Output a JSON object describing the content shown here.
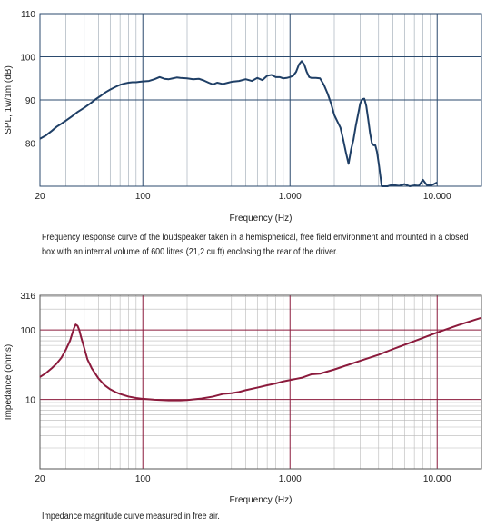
{
  "chart_data": [
    {
      "type": "line",
      "title": "",
      "xlabel": "Frequency (Hz)",
      "ylabel": "SPL, 1w/1m (dB)",
      "x_scale": "log",
      "xlim": [
        20,
        20000
      ],
      "ylim": [
        70,
        110
      ],
      "x_tick_labels": [
        {
          "value": 20,
          "label": "20"
        },
        {
          "value": 100,
          "label": "100"
        },
        {
          "value": 1000,
          "label": "1.000"
        },
        {
          "value": 10000,
          "label": "10.000"
        }
      ],
      "y_tick_labels": [
        {
          "value": 80,
          "label": "80"
        },
        {
          "value": 90,
          "label": "90"
        },
        {
          "value": 100,
          "label": "100"
        },
        {
          "value": 110,
          "label": "110"
        }
      ],
      "grid": true,
      "colors": {
        "line": "#1f3f66",
        "grid": "#9aa5b1",
        "major_grid": "#2b4a6e"
      },
      "series": [
        {
          "x": [
            20,
            22,
            24,
            26,
            28,
            30,
            33,
            36,
            40,
            44,
            48,
            52,
            56,
            60,
            65,
            70,
            75,
            80,
            85,
            90,
            95,
            100,
            110,
            120,
            130,
            140,
            150,
            160,
            170,
            180,
            200,
            220,
            240,
            260,
            280,
            300,
            320,
            350,
            380,
            400,
            450,
            500,
            550,
            600,
            650,
            700,
            750,
            800,
            850,
            900,
            950,
            1000,
            1050,
            1100,
            1150,
            1200,
            1250,
            1300,
            1350,
            1400,
            1500,
            1600,
            1700,
            1800,
            1900,
            2000,
            2100,
            2200,
            2300,
            2400,
            2500,
            2600,
            2700,
            2800,
            2900,
            3000,
            3100,
            3200,
            3300,
            3400,
            3500,
            3600,
            3700,
            3800,
            3900,
            4000,
            4200,
            4400,
            4600,
            4800,
            5000,
            5500,
            6000,
            6500,
            7000,
            7500,
            8000,
            8500,
            9000,
            9500,
            10000
          ],
          "y": [
            81,
            81.8,
            82.8,
            83.8,
            84.5,
            85.2,
            86.2,
            87.2,
            88.2,
            89.2,
            90.2,
            91,
            91.8,
            92.4,
            93,
            93.5,
            93.8,
            94,
            94.1,
            94.1,
            94.2,
            94.3,
            94.4,
            94.8,
            95.3,
            94.9,
            94.8,
            95,
            95.2,
            95.1,
            95,
            94.8,
            94.9,
            94.5,
            94,
            93.6,
            94,
            93.7,
            94,
            94.2,
            94.4,
            94.8,
            94.4,
            95.1,
            94.6,
            95.6,
            95.8,
            95.3,
            95.3,
            95,
            95.1,
            95.3,
            95.6,
            96.5,
            98.2,
            99,
            98.2,
            96.5,
            95.3,
            95.1,
            95.1,
            95,
            93.5,
            91.5,
            89.2,
            86.5,
            85,
            83.6,
            80.8,
            77.8,
            75.2,
            78.5,
            80.8,
            84,
            86.6,
            89.2,
            90.2,
            90.3,
            88.6,
            85.5,
            82.3,
            80,
            79.5,
            79.5,
            78,
            75.5,
            70,
            70,
            70,
            70.2,
            70.3,
            70.1,
            70.5,
            70,
            70.2,
            70.1,
            71.5,
            70.3,
            70.2,
            70.5,
            70.9
          ]
        }
      ],
      "caption": "Frequency response curve of the loudspeaker taken in a hemispherical, free field environment and mounted in a closed box with an internal volume of 600 litres (21,2 cu.ft) enclosing the rear of the driver."
    },
    {
      "type": "line",
      "title": "",
      "xlabel": "Frequency (Hz)",
      "ylabel": "Impedance (ohms)",
      "x_scale": "log",
      "y_scale": "log",
      "xlim": [
        20,
        20000
      ],
      "ylim": [
        1,
        316
      ],
      "x_tick_labels": [
        {
          "value": 20,
          "label": "20"
        },
        {
          "value": 100,
          "label": "100"
        },
        {
          "value": 1000,
          "label": "1.000"
        },
        {
          "value": 10000,
          "label": "10.000"
        }
      ],
      "y_tick_labels": [
        {
          "value": 10,
          "label": "10"
        },
        {
          "value": 100,
          "label": "100"
        },
        {
          "value": 316,
          "label": "316"
        }
      ],
      "grid": true,
      "colors": {
        "line": "#8b1a3c",
        "grid": "#b8b8b8",
        "major_grid": "#8b1a3c"
      },
      "series": [
        {
          "x": [
            20,
            22,
            24,
            26,
            28,
            30,
            32,
            34,
            35,
            36,
            37,
            38,
            40,
            42,
            45,
            50,
            55,
            60,
            65,
            70,
            80,
            90,
            100,
            120,
            150,
            180,
            200,
            250,
            300,
            350,
            400,
            450,
            500,
            600,
            700,
            800,
            900,
            1000,
            1100,
            1200,
            1400,
            1600,
            2000,
            3000,
            4000,
            5000,
            7000,
            10000,
            14000,
            20000
          ],
          "y": [
            21,
            24,
            28,
            33,
            40,
            52,
            70,
            105,
            120,
            115,
            100,
            80,
            55,
            38,
            28,
            20,
            16,
            14,
            12.8,
            12,
            11,
            10.5,
            10.2,
            9.9,
            9.7,
            9.7,
            9.8,
            10.3,
            11,
            12,
            12.3,
            12.8,
            13.6,
            14.8,
            16,
            17,
            18.2,
            19,
            19.8,
            20.5,
            23,
            23.5,
            27,
            36,
            44,
            53,
            69,
            92,
            118,
            150
          ]
        }
      ],
      "caption": "Impedance magnitude curve measured in free air."
    }
  ]
}
